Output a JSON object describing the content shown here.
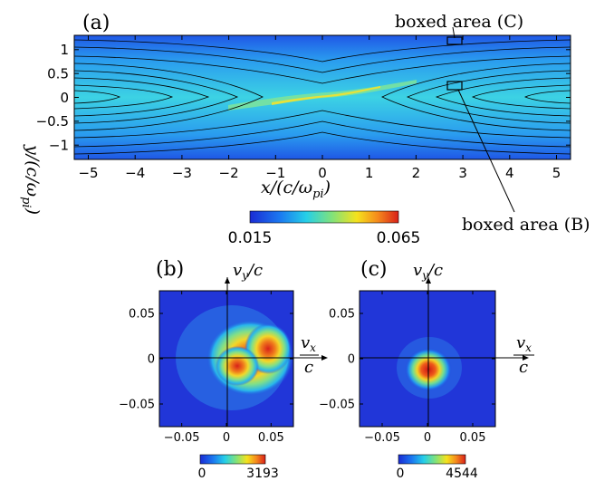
{
  "panels": {
    "a": {
      "label": "(a)",
      "xlabel": "x/(c/ω",
      "xlabel_sub": "pi",
      "xlabel_close": ")",
      "ylabel": "y/(c/ω",
      "ylabel_sub": "pi",
      "ylabel_close": ")",
      "xticks": [
        "−5",
        "−4",
        "−3",
        "−2",
        "−1",
        "0",
        "1",
        "2",
        "3",
        "4",
        "5"
      ],
      "yticks": [
        "1",
        "0.5",
        "0",
        "−0.5",
        "−1"
      ],
      "annotation_c": "boxed area (C)",
      "annotation_b": "boxed area (B)",
      "colorbar_min": "0.015",
      "colorbar_max": "0.065"
    },
    "b": {
      "label": "(b)",
      "ylabel_main": "v",
      "ylabel_sub": "y",
      "ylabel_tail": "/c",
      "xlabel_num_main": "v",
      "xlabel_num_sub": "x",
      "xlabel_den": "c",
      "yticks": [
        "0.05",
        "0",
        "−0.05"
      ],
      "xticks": [
        "−0.05",
        "0",
        "0.05"
      ],
      "colorbar_min": "0",
      "colorbar_max": "3193"
    },
    "c": {
      "label": "(c)",
      "ylabel_main": "v",
      "ylabel_sub": "y",
      "ylabel_tail": "/c",
      "xlabel_num_main": "v",
      "xlabel_num_sub": "x",
      "xlabel_den": "c",
      "yticks": [
        "0.05",
        "0",
        "−0.05"
      ],
      "xticks": [
        "−0.05",
        "0",
        "0.05"
      ],
      "colorbar_min": "0",
      "colorbar_max": "4544"
    }
  },
  "chart_data": [
    {
      "type": "heatmap",
      "panel": "a",
      "xlim": [
        -5.3,
        5.3
      ],
      "ylim": [
        -1.3,
        1.3
      ],
      "x_ticks": [
        -5,
        -4,
        -3,
        -2,
        -1,
        0,
        1,
        2,
        3,
        4,
        5
      ],
      "y_ticks": [
        -1,
        -0.5,
        0,
        0.5,
        1
      ],
      "colorbar_range": [
        0.015,
        0.065
      ],
      "boxes": [
        {
          "name": "C",
          "x": [
            2.6,
            2.95
          ],
          "y": [
            1.02,
            1.2
          ]
        },
        {
          "name": "B",
          "x": [
            2.6,
            2.95
          ],
          "y": [
            0.14,
            0.32
          ]
        }
      ]
    },
    {
      "type": "heatmap",
      "panel": "b",
      "xlim": [
        -0.075,
        0.075
      ],
      "ylim": [
        -0.075,
        0.075
      ],
      "x_ticks": [
        -0.05,
        0,
        0.05
      ],
      "y_ticks": [
        -0.05,
        0,
        0.05
      ],
      "colorbar_range": [
        0,
        3193
      ]
    },
    {
      "type": "heatmap",
      "panel": "c",
      "xlim": [
        -0.075,
        0.075
      ],
      "ylim": [
        -0.075,
        0.075
      ],
      "x_ticks": [
        -0.05,
        0,
        0.05
      ],
      "y_ticks": [
        -0.05,
        0,
        0.05
      ],
      "colorbar_range": [
        0,
        4544
      ]
    }
  ],
  "colors": {
    "low": "#1f3fd6",
    "mid": "#35c9e6",
    "high": "#e8301c"
  }
}
